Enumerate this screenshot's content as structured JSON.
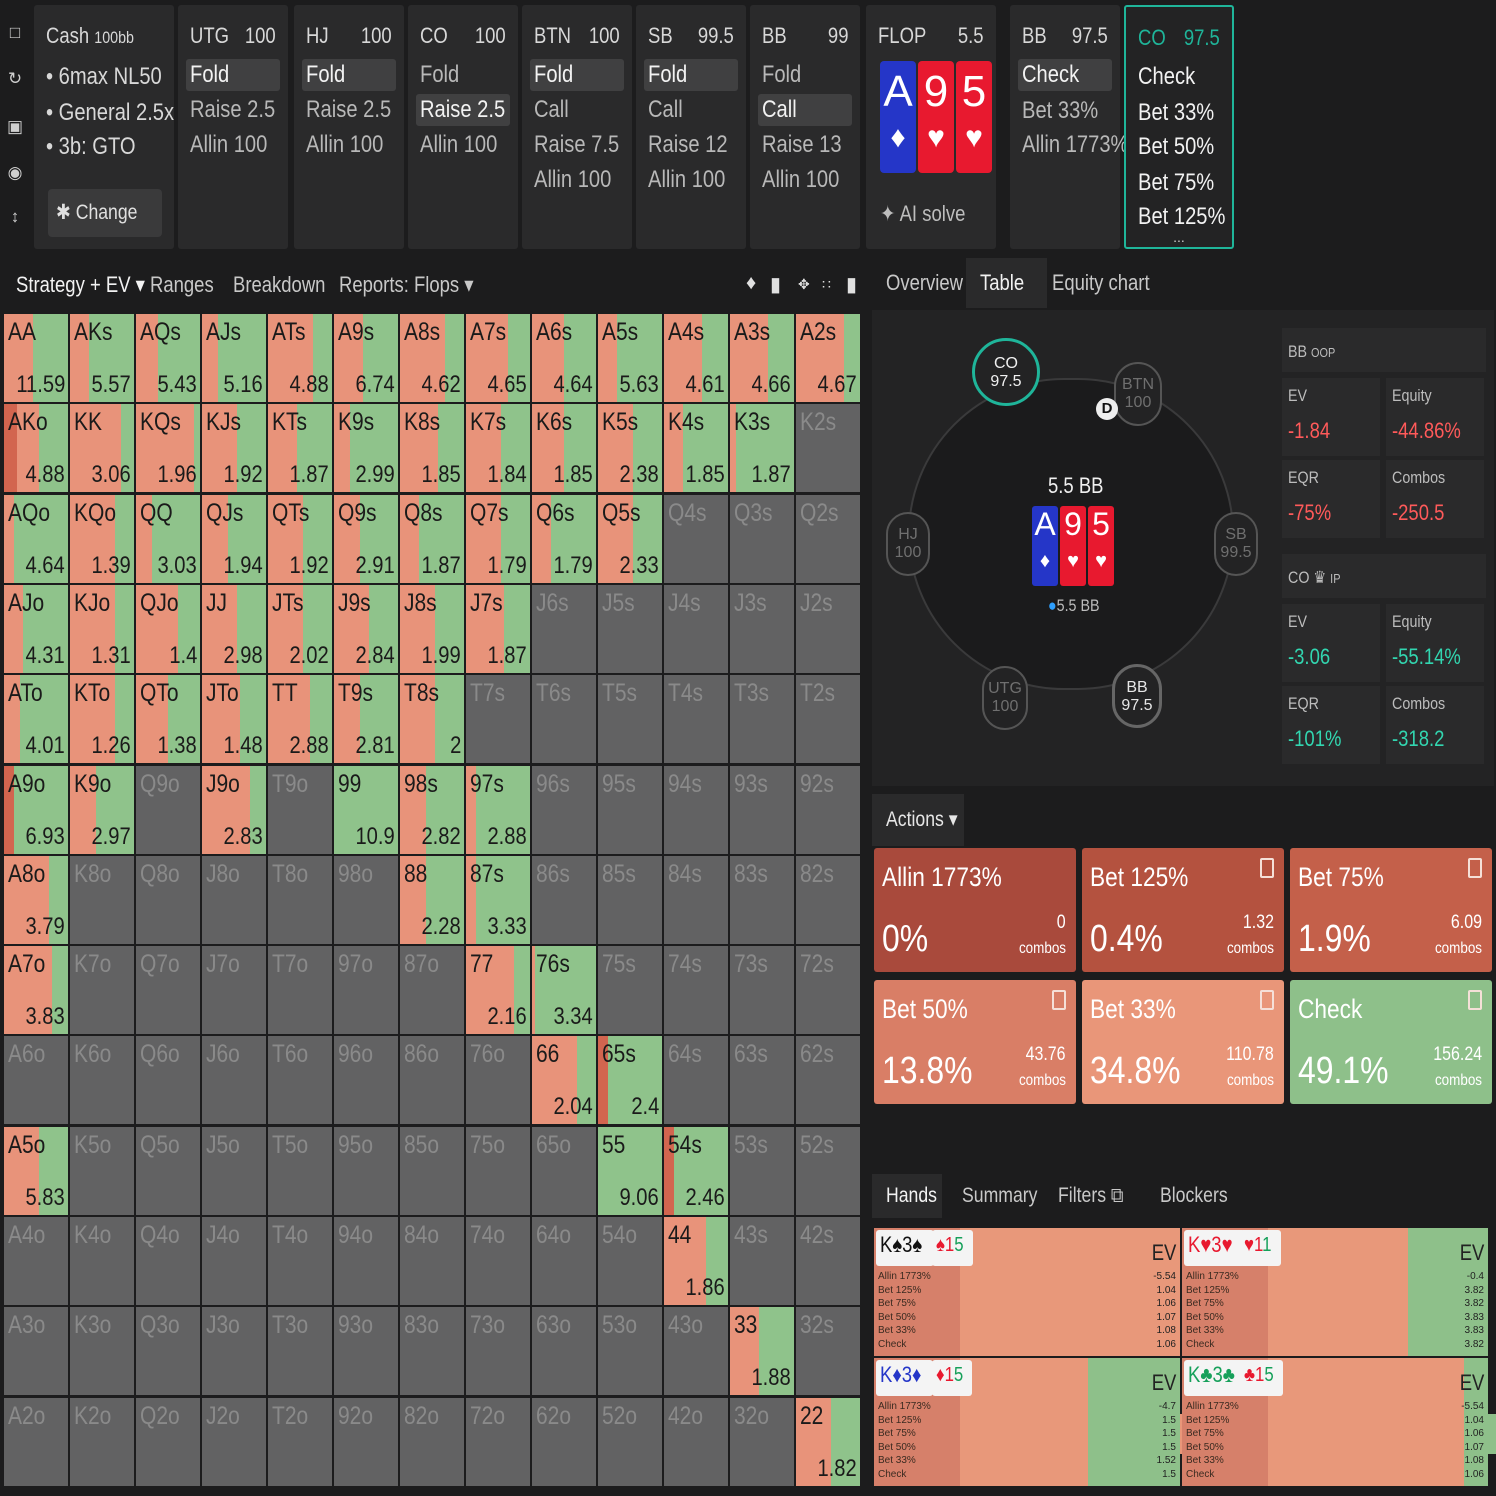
{
  "leftbar": {
    "icons": [
      "bookmark-icon",
      "history-icon",
      "save-icon",
      "gamepad-icon",
      "resize-icon"
    ]
  },
  "info": {
    "title": "Cash",
    "stack": "100bb",
    "lines": [
      "6max NL50",
      "General 2.5x",
      "3b: GTO"
    ],
    "change": "Change"
  },
  "seats": [
    {
      "pos": "UTG",
      "stack": "100",
      "actions": [
        "Fold",
        "Raise 2.5",
        "Allin 100"
      ],
      "selected": 0
    },
    {
      "pos": "HJ",
      "stack": "100",
      "actions": [
        "Fold",
        "Raise 2.5",
        "Allin 100"
      ],
      "selected": 0
    },
    {
      "pos": "CO",
      "stack": "100",
      "actions": [
        "Fold",
        "Raise 2.5",
        "Allin 100"
      ],
      "selected": 1
    },
    {
      "pos": "BTN",
      "stack": "100",
      "actions": [
        "Fold",
        "Call",
        "Raise 7.5",
        "Allin 100"
      ],
      "selected": 0
    },
    {
      "pos": "SB",
      "stack": "99.5",
      "actions": [
        "Fold",
        "Call",
        "Raise 12",
        "Allin 100"
      ],
      "selected": 0
    },
    {
      "pos": "BB",
      "stack": "99",
      "actions": [
        "Fold",
        "Call",
        "Raise 13",
        "Allin 100"
      ],
      "selected": 1
    }
  ],
  "flop": {
    "label": "FLOP",
    "pot": "5.5",
    "cards": [
      {
        "r": "A",
        "s": "♦",
        "c": "#2536c8"
      },
      {
        "r": "9",
        "s": "♥",
        "c": "#e8192f"
      },
      {
        "r": "5",
        "s": "♥",
        "c": "#e8192f"
      }
    ],
    "ai": "AI solve"
  },
  "bbcard": {
    "pos": "BB",
    "stack": "97.5",
    "actions": [
      "Check",
      "Bet 33%",
      "Allin 1773%"
    ],
    "selected": 0
  },
  "cocard": {
    "pos": "CO",
    "stack": "97.5",
    "actions": [
      "Check",
      "Bet 33%",
      "Bet 50%",
      "Bet 75%",
      "Bet 125%"
    ],
    "more": "..."
  },
  "tabs": {
    "strategy": "Strategy + EV",
    "ranges": "Ranges",
    "breakdown": "Breakdown",
    "reports": "Reports: Flops"
  },
  "tabs2": {
    "overview": "Overview",
    "table": "Table",
    "equity": "Equity chart"
  },
  "colors": {
    "red": "#e8937a",
    "green": "#8fc38b",
    "darkred": "#d2654f",
    "grey": "#626263",
    "teal": "#1fb59a"
  },
  "grid": [
    [
      "AA",
      "11.59",
      0.55,
      0,
      "AKs",
      "5.57",
      0.7,
      0,
      "AQs",
      "5.43",
      0.65,
      0,
      "AJs",
      "5.16",
      0.75,
      0,
      "ATs",
      "4.88",
      0.3,
      0,
      "A9s",
      "6.74",
      0.55,
      0,
      "A8s",
      "4.62",
      0.3,
      0,
      "A7s",
      "4.65",
      0.35,
      0,
      "A6s",
      "4.64",
      0.5,
      0,
      "A5s",
      "5.63",
      0.7,
      0,
      "A4s",
      "4.61",
      0.4,
      0,
      "A3s",
      "4.66",
      0.4,
      0,
      "A2s",
      "4.67",
      0.25,
      0
    ],
    [
      "AKo",
      "4.88",
      0.45,
      0.2,
      "KK",
      "3.06",
      0.2,
      0,
      "KQs",
      "1.96",
      0.1,
      0,
      "KJs",
      "1.92",
      0.45,
      0,
      "KTs",
      "1.87",
      0.55,
      0,
      "K9s",
      "2.99",
      0.75,
      0,
      "K8s",
      "1.85",
      0.4,
      0,
      "K7s",
      "1.84",
      0.45,
      0,
      "K6s",
      "1.85",
      0.5,
      0,
      "K5s",
      "2.38",
      0.45,
      0,
      "K4s",
      "1.85",
      0.7,
      0,
      "K3s",
      "1.87",
      0.9,
      0,
      "K2s",
      "",
      -1,
      0
    ],
    [
      "AQo",
      "4.64",
      0.85,
      0,
      "KQo",
      "1.39",
      0.3,
      0,
      "QQ",
      "3.03",
      0.75,
      0,
      "QJs",
      "1.94",
      0.6,
      0,
      "QTs",
      "1.92",
      0.45,
      0,
      "Q9s",
      "2.91",
      0.6,
      0,
      "Q8s",
      "1.87",
      0.7,
      0,
      "Q7s",
      "1.79",
      0.45,
      0,
      "Q6s",
      "1.79",
      0.7,
      0,
      "Q5s",
      "2.33",
      0.45,
      0,
      "Q4s",
      "",
      -1,
      0,
      "Q3s",
      "",
      -1,
      0,
      "Q2s",
      "",
      -1,
      0
    ],
    [
      "AJo",
      "4.31",
      0.7,
      0,
      "KJo",
      "1.31",
      0.3,
      0,
      "QJo",
      "1.4",
      0.35,
      0,
      "JJ",
      "2.98",
      0.45,
      0,
      "JTs",
      "2.02",
      0.45,
      0,
      "J9s",
      "2.84",
      0.45,
      0,
      "J8s",
      "1.99",
      0.45,
      0,
      "J7s",
      "1.87",
      0.4,
      0,
      "J6s",
      "",
      -1,
      0,
      "J5s",
      "",
      -1,
      0,
      "J4s",
      "",
      -1,
      0,
      "J3s",
      "",
      -1,
      0,
      "J2s",
      "",
      -1,
      0
    ],
    [
      "ATo",
      "4.01",
      0.75,
      0,
      "KTo",
      "1.26",
      0.3,
      0,
      "QTo",
      "1.38",
      0.5,
      0,
      "JTo",
      "1.48",
      0.4,
      0,
      "TT",
      "2.88",
      0.35,
      0,
      "T9s",
      "2.81",
      0.6,
      0,
      "T8s",
      "2",
      0.45,
      0,
      "T7s",
      "",
      -1,
      0,
      "T6s",
      "",
      -1,
      0,
      "T5s",
      "",
      -1,
      0,
      "T4s",
      "",
      -1,
      0,
      "T3s",
      "",
      -1,
      0,
      "T2s",
      "",
      -1,
      0
    ],
    [
      "A9o",
      "6.93",
      0.85,
      0.35,
      "K9o",
      "2.97",
      0.6,
      0,
      "Q9o",
      "",
      -1,
      0,
      "J9o",
      "2.83",
      0.25,
      0,
      "T9o",
      "",
      -1,
      0,
      "99",
      "10.9",
      1,
      0.5,
      "98s",
      "2.82",
      0.6,
      0,
      "97s",
      "2.88",
      0.85,
      0,
      "96s",
      "",
      -1,
      0,
      "95s",
      "",
      -1,
      0,
      "94s",
      "",
      -1,
      0,
      "93s",
      "",
      -1,
      0,
      "92s",
      "",
      -1,
      0
    ],
    [
      "A8o",
      "3.79",
      0.3,
      0,
      "K8o",
      "",
      -1,
      0,
      "Q8o",
      "",
      -1,
      0,
      "J8o",
      "",
      -1,
      0,
      "T8o",
      "",
      -1,
      0,
      "98o",
      "",
      -1,
      0,
      "88",
      "2.28",
      0.6,
      0,
      "87s",
      "3.33",
      0.85,
      0,
      "86s",
      "",
      -1,
      0,
      "85s",
      "",
      -1,
      0,
      "84s",
      "",
      -1,
      0,
      "83s",
      "",
      -1,
      0,
      "82s",
      "",
      -1,
      0
    ],
    [
      "A7o",
      "3.83",
      0.25,
      0,
      "K7o",
      "",
      -1,
      0,
      "Q7o",
      "",
      -1,
      0,
      "J7o",
      "",
      -1,
      0,
      "T7o",
      "",
      -1,
      0,
      "97o",
      "",
      -1,
      0,
      "87o",
      "",
      -1,
      0,
      "77",
      "2.16",
      0.25,
      0,
      "76s",
      "3.34",
      0.95,
      0,
      "75s",
      "",
      -1,
      0,
      "74s",
      "",
      -1,
      0,
      "73s",
      "",
      -1,
      0,
      "72s",
      "",
      -1,
      0
    ],
    [
      "A6o",
      "",
      -1,
      0,
      "K6o",
      "",
      -1,
      0,
      "Q6o",
      "",
      -1,
      0,
      "J6o",
      "",
      -1,
      0,
      "T6o",
      "",
      -1,
      0,
      "96o",
      "",
      -1,
      0,
      "86o",
      "",
      -1,
      0,
      "76o",
      "",
      -1,
      0,
      "66",
      "2.04",
      0.3,
      0,
      "65s",
      "2.4",
      0.85,
      0.2,
      "64s",
      "",
      -1,
      0,
      "63s",
      "",
      -1,
      0,
      "62s",
      "",
      -1,
      0
    ],
    [
      "A5o",
      "5.83",
      0.45,
      0,
      "K5o",
      "",
      -1,
      0,
      "Q5o",
      "",
      -1,
      0,
      "J5o",
      "",
      -1,
      0,
      "T5o",
      "",
      -1,
      0,
      "95o",
      "",
      -1,
      0,
      "85o",
      "",
      -1,
      0,
      "75o",
      "",
      -1,
      0,
      "65o",
      "",
      -1,
      0,
      "55",
      "9.06",
      1,
      0.2,
      "54s",
      "2.46",
      0.85,
      0.3,
      "53s",
      "",
      -1,
      0,
      "52s",
      "",
      -1,
      0
    ],
    [
      "A4o",
      "",
      -1,
      0,
      "K4o",
      "",
      -1,
      0,
      "Q4o",
      "",
      -1,
      0,
      "J4o",
      "",
      -1,
      0,
      "T4o",
      "",
      -1,
      0,
      "94o",
      "",
      -1,
      0,
      "84o",
      "",
      -1,
      0,
      "74o",
      "",
      -1,
      0,
      "64o",
      "",
      -1,
      0,
      "54o",
      "",
      -1,
      0,
      "44",
      "1.86",
      0.35,
      0,
      "43s",
      "",
      -1,
      0,
      "42s",
      "",
      -1,
      0
    ],
    [
      "A3o",
      "",
      -1,
      0,
      "K3o",
      "",
      -1,
      0,
      "Q3o",
      "",
      -1,
      0,
      "J3o",
      "",
      -1,
      0,
      "T3o",
      "",
      -1,
      0,
      "93o",
      "",
      -1,
      0,
      "83o",
      "",
      -1,
      0,
      "73o",
      "",
      -1,
      0,
      "63o",
      "",
      -1,
      0,
      "53o",
      "",
      -1,
      0,
      "43o",
      "",
      -1,
      0,
      "33",
      "1.88",
      0.55,
      0,
      "32s",
      "",
      -1,
      0
    ],
    [
      "A2o",
      "",
      -1,
      0,
      "K2o",
      "",
      -1,
      0,
      "Q2o",
      "",
      -1,
      0,
      "J2o",
      "",
      -1,
      0,
      "T2o",
      "",
      -1,
      0,
      "92o",
      "",
      -1,
      0,
      "82o",
      "",
      -1,
      0,
      "72o",
      "",
      -1,
      0,
      "62o",
      "",
      -1,
      0,
      "52o",
      "",
      -1,
      0,
      "42o",
      "",
      -1,
      0,
      "32o",
      "",
      -1,
      0,
      "22",
      "1.82",
      0.45,
      0
    ]
  ],
  "table": {
    "co": {
      "pos": "CO",
      "stack": "97.5"
    },
    "btn": {
      "pos": "BTN",
      "stack": "100"
    },
    "hj": {
      "pos": "HJ",
      "stack": "100"
    },
    "sb": {
      "pos": "SB",
      "stack": "99.5"
    },
    "utg": {
      "pos": "UTG",
      "stack": "100"
    },
    "bb": {
      "pos": "BB",
      "stack": "97.5"
    },
    "dealer": "D",
    "pot": "5.5 BB",
    "potchips": "5.5 BB"
  },
  "bbstats": {
    "title": "BB",
    "role": "OOP",
    "ev_k": "EV",
    "ev": "-1.84",
    "eq_k": "Equity",
    "eq": "-44.86%",
    "eqr_k": "EQR",
    "eqr": "-75%",
    "combos_k": "Combos",
    "combos": "-250.5"
  },
  "costats": {
    "title": "CO",
    "role": "IP",
    "ev_k": "EV",
    "ev": "-3.06",
    "eq_k": "Equity",
    "eq": "-55.14%",
    "eqr_k": "EQR",
    "eqr": "-101%",
    "combos_k": "Combos",
    "combos": "-318.2"
  },
  "actions": {
    "label": "Actions",
    "boxes": [
      {
        "name": "Allin 1773%",
        "pct": "0%",
        "combos": "0",
        "unit": "combos",
        "color": "#a94a3c"
      },
      {
        "name": "Bet 125%",
        "pct": "0.4%",
        "combos": "1.32",
        "unit": "combos",
        "color": "#b4523f"
      },
      {
        "name": "Bet 75%",
        "pct": "1.9%",
        "combos": "6.09",
        "unit": "combos",
        "color": "#c4604a"
      },
      {
        "name": "Bet 50%",
        "pct": "13.8%",
        "combos": "43.76",
        "unit": "combos",
        "color": "#d97e66"
      },
      {
        "name": "Bet 33%",
        "pct": "34.8%",
        "combos": "110.78",
        "unit": "combos",
        "color": "#e99679"
      },
      {
        "name": "Check",
        "pct": "49.1%",
        "combos": "156.24",
        "unit": "combos",
        "color": "#8ec08a"
      }
    ],
    "bar": [
      0.004,
      0.019,
      0.138,
      0.348,
      0.491
    ]
  },
  "handtabs": {
    "hands": "Hands",
    "summary": "Summary",
    "filters": "Filters",
    "blockers": "Blockers"
  },
  "hands": [
    {
      "combo": "K♠3♠",
      "c1": "#111",
      "board": [
        "♠1",
        "5"
      ],
      "ev": "EV",
      "vals": [
        "-5.54",
        "1.04",
        "1.06",
        "1.07",
        "1.08",
        "1.06"
      ],
      "green": 0.0
    },
    {
      "combo": "K♥3♥",
      "c1": "#e8192f",
      "board": [
        "♥1",
        "1"
      ],
      "ev": "EV",
      "vals": [
        "-0.4",
        "3.82",
        "3.82",
        "3.83",
        "3.83",
        "3.82"
      ],
      "green": 0.26
    },
    {
      "combo": "K♦3♦",
      "c1": "#2536c8",
      "board": [
        "♦1",
        "5"
      ],
      "ev": "EV",
      "vals": [
        "-4.7",
        "1.5",
        "1.5",
        "1.5",
        "1.52",
        "1.5"
      ],
      "green": 0.3
    },
    {
      "combo": "K♣3♣",
      "c1": "#16a05a",
      "board": [
        "♣1",
        "5"
      ],
      "ev": "EV",
      "vals": [
        "-5.54",
        "1.04",
        "1.06",
        "1.07",
        "1.08",
        "1.06"
      ],
      "green": 0.08
    }
  ],
  "handrows": [
    "Allin 1773%",
    "Bet 125%",
    "Bet 75%",
    "Bet 50%",
    "Bet 33%",
    "Check"
  ]
}
